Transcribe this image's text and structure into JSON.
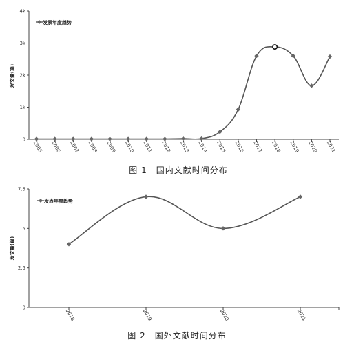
{
  "chart_data": [
    {
      "type": "line",
      "title": "",
      "xlabel": "",
      "ylabel": "发文量(篇)",
      "caption": "图 1　国内文献时间分布",
      "legend": "发表年度趋势",
      "legend_position": "top-left",
      "grid": false,
      "categories": [
        "2005",
        "2006",
        "2007",
        "2008",
        "2009",
        "2010",
        "2011",
        "2012",
        "2013",
        "2014",
        "2015",
        "2016",
        "2017",
        "2018",
        "2019",
        "2020",
        "2021"
      ],
      "series": [
        {
          "name": "发表年度趋势",
          "values": [
            10,
            10,
            10,
            10,
            10,
            10,
            10,
            10,
            20,
            20,
            230,
            930,
            2600,
            2880,
            2600,
            1670,
            2580
          ],
          "highlight_index": 13
        }
      ],
      "yticks": [
        "0",
        "1k",
        "2k",
        "3k",
        "4k"
      ],
      "ylim": [
        0,
        4000
      ]
    },
    {
      "type": "line",
      "title": "",
      "xlabel": "",
      "ylabel": "发文量(篇)",
      "caption": "图 2　国外文献时间分布",
      "legend": "发表年度趋势",
      "legend_position": "top-left",
      "grid": false,
      "categories": [
        "2018",
        "2019",
        "2020",
        "2021"
      ],
      "series": [
        {
          "name": "发表年度趋势",
          "values": [
            4,
            7,
            5,
            7
          ]
        }
      ],
      "yticks": [
        "0",
        "2.5",
        "5",
        "7.5"
      ],
      "ylim": [
        0,
        7.5
      ]
    }
  ],
  "style": {
    "line_color": "#555555",
    "marker_color": "#666666",
    "axis_color": "#444444"
  }
}
